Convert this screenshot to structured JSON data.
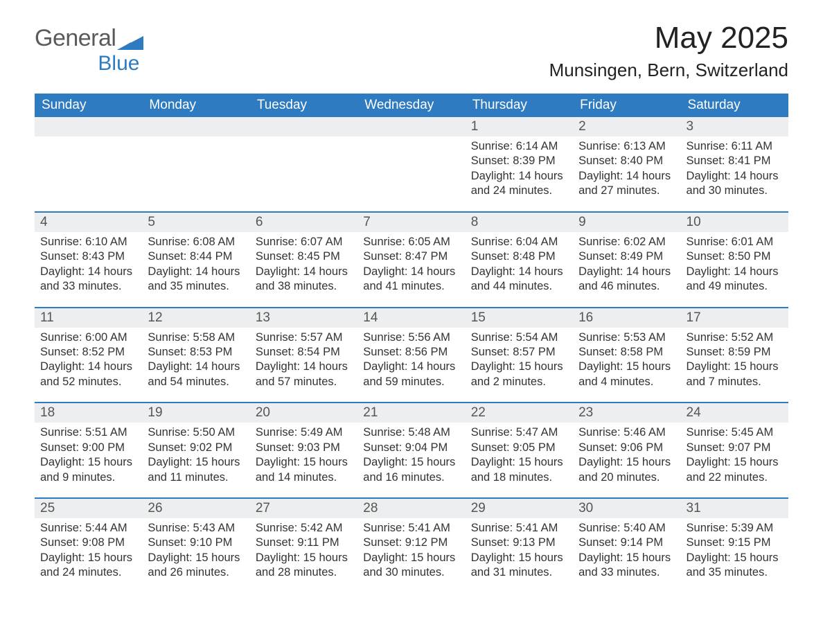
{
  "brand": {
    "name_part1": "General",
    "name_part2": "Blue",
    "color_primary": "#2f7bc2",
    "color_gray": "#5a5a5a"
  },
  "header": {
    "title": "May 2025",
    "subtitle": "Munsingen, Bern, Switzerland"
  },
  "styling": {
    "weekday_bg": "#2f7bc2",
    "weekday_fg": "#ffffff",
    "daynum_bg": "#eceeef",
    "daynum_fg": "#555555",
    "body_fg": "#333333",
    "week_divider": "#2f7bc2",
    "page_bg": "#ffffff",
    "title_fontsize": 44,
    "subtitle_fontsize": 26,
    "weekday_fontsize": 19,
    "daynum_fontsize": 19,
    "body_fontsize": 16.5
  },
  "weekdays": [
    "Sunday",
    "Monday",
    "Tuesday",
    "Wednesday",
    "Thursday",
    "Friday",
    "Saturday"
  ],
  "weeks": [
    [
      {
        "empty": true
      },
      {
        "empty": true
      },
      {
        "empty": true
      },
      {
        "empty": true
      },
      {
        "day": "1",
        "sunrise": "Sunrise: 6:14 AM",
        "sunset": "Sunset: 8:39 PM",
        "daylight1": "Daylight: 14 hours",
        "daylight2": "and 24 minutes."
      },
      {
        "day": "2",
        "sunrise": "Sunrise: 6:13 AM",
        "sunset": "Sunset: 8:40 PM",
        "daylight1": "Daylight: 14 hours",
        "daylight2": "and 27 minutes."
      },
      {
        "day": "3",
        "sunrise": "Sunrise: 6:11 AM",
        "sunset": "Sunset: 8:41 PM",
        "daylight1": "Daylight: 14 hours",
        "daylight2": "and 30 minutes."
      }
    ],
    [
      {
        "day": "4",
        "sunrise": "Sunrise: 6:10 AM",
        "sunset": "Sunset: 8:43 PM",
        "daylight1": "Daylight: 14 hours",
        "daylight2": "and 33 minutes."
      },
      {
        "day": "5",
        "sunrise": "Sunrise: 6:08 AM",
        "sunset": "Sunset: 8:44 PM",
        "daylight1": "Daylight: 14 hours",
        "daylight2": "and 35 minutes."
      },
      {
        "day": "6",
        "sunrise": "Sunrise: 6:07 AM",
        "sunset": "Sunset: 8:45 PM",
        "daylight1": "Daylight: 14 hours",
        "daylight2": "and 38 minutes."
      },
      {
        "day": "7",
        "sunrise": "Sunrise: 6:05 AM",
        "sunset": "Sunset: 8:47 PM",
        "daylight1": "Daylight: 14 hours",
        "daylight2": "and 41 minutes."
      },
      {
        "day": "8",
        "sunrise": "Sunrise: 6:04 AM",
        "sunset": "Sunset: 8:48 PM",
        "daylight1": "Daylight: 14 hours",
        "daylight2": "and 44 minutes."
      },
      {
        "day": "9",
        "sunrise": "Sunrise: 6:02 AM",
        "sunset": "Sunset: 8:49 PM",
        "daylight1": "Daylight: 14 hours",
        "daylight2": "and 46 minutes."
      },
      {
        "day": "10",
        "sunrise": "Sunrise: 6:01 AM",
        "sunset": "Sunset: 8:50 PM",
        "daylight1": "Daylight: 14 hours",
        "daylight2": "and 49 minutes."
      }
    ],
    [
      {
        "day": "11",
        "sunrise": "Sunrise: 6:00 AM",
        "sunset": "Sunset: 8:52 PM",
        "daylight1": "Daylight: 14 hours",
        "daylight2": "and 52 minutes."
      },
      {
        "day": "12",
        "sunrise": "Sunrise: 5:58 AM",
        "sunset": "Sunset: 8:53 PM",
        "daylight1": "Daylight: 14 hours",
        "daylight2": "and 54 minutes."
      },
      {
        "day": "13",
        "sunrise": "Sunrise: 5:57 AM",
        "sunset": "Sunset: 8:54 PM",
        "daylight1": "Daylight: 14 hours",
        "daylight2": "and 57 minutes."
      },
      {
        "day": "14",
        "sunrise": "Sunrise: 5:56 AM",
        "sunset": "Sunset: 8:56 PM",
        "daylight1": "Daylight: 14 hours",
        "daylight2": "and 59 minutes."
      },
      {
        "day": "15",
        "sunrise": "Sunrise: 5:54 AM",
        "sunset": "Sunset: 8:57 PM",
        "daylight1": "Daylight: 15 hours",
        "daylight2": "and 2 minutes."
      },
      {
        "day": "16",
        "sunrise": "Sunrise: 5:53 AM",
        "sunset": "Sunset: 8:58 PM",
        "daylight1": "Daylight: 15 hours",
        "daylight2": "and 4 minutes."
      },
      {
        "day": "17",
        "sunrise": "Sunrise: 5:52 AM",
        "sunset": "Sunset: 8:59 PM",
        "daylight1": "Daylight: 15 hours",
        "daylight2": "and 7 minutes."
      }
    ],
    [
      {
        "day": "18",
        "sunrise": "Sunrise: 5:51 AM",
        "sunset": "Sunset: 9:00 PM",
        "daylight1": "Daylight: 15 hours",
        "daylight2": "and 9 minutes."
      },
      {
        "day": "19",
        "sunrise": "Sunrise: 5:50 AM",
        "sunset": "Sunset: 9:02 PM",
        "daylight1": "Daylight: 15 hours",
        "daylight2": "and 11 minutes."
      },
      {
        "day": "20",
        "sunrise": "Sunrise: 5:49 AM",
        "sunset": "Sunset: 9:03 PM",
        "daylight1": "Daylight: 15 hours",
        "daylight2": "and 14 minutes."
      },
      {
        "day": "21",
        "sunrise": "Sunrise: 5:48 AM",
        "sunset": "Sunset: 9:04 PM",
        "daylight1": "Daylight: 15 hours",
        "daylight2": "and 16 minutes."
      },
      {
        "day": "22",
        "sunrise": "Sunrise: 5:47 AM",
        "sunset": "Sunset: 9:05 PM",
        "daylight1": "Daylight: 15 hours",
        "daylight2": "and 18 minutes."
      },
      {
        "day": "23",
        "sunrise": "Sunrise: 5:46 AM",
        "sunset": "Sunset: 9:06 PM",
        "daylight1": "Daylight: 15 hours",
        "daylight2": "and 20 minutes."
      },
      {
        "day": "24",
        "sunrise": "Sunrise: 5:45 AM",
        "sunset": "Sunset: 9:07 PM",
        "daylight1": "Daylight: 15 hours",
        "daylight2": "and 22 minutes."
      }
    ],
    [
      {
        "day": "25",
        "sunrise": "Sunrise: 5:44 AM",
        "sunset": "Sunset: 9:08 PM",
        "daylight1": "Daylight: 15 hours",
        "daylight2": "and 24 minutes."
      },
      {
        "day": "26",
        "sunrise": "Sunrise: 5:43 AM",
        "sunset": "Sunset: 9:10 PM",
        "daylight1": "Daylight: 15 hours",
        "daylight2": "and 26 minutes."
      },
      {
        "day": "27",
        "sunrise": "Sunrise: 5:42 AM",
        "sunset": "Sunset: 9:11 PM",
        "daylight1": "Daylight: 15 hours",
        "daylight2": "and 28 minutes."
      },
      {
        "day": "28",
        "sunrise": "Sunrise: 5:41 AM",
        "sunset": "Sunset: 9:12 PM",
        "daylight1": "Daylight: 15 hours",
        "daylight2": "and 30 minutes."
      },
      {
        "day": "29",
        "sunrise": "Sunrise: 5:41 AM",
        "sunset": "Sunset: 9:13 PM",
        "daylight1": "Daylight: 15 hours",
        "daylight2": "and 31 minutes."
      },
      {
        "day": "30",
        "sunrise": "Sunrise: 5:40 AM",
        "sunset": "Sunset: 9:14 PM",
        "daylight1": "Daylight: 15 hours",
        "daylight2": "and 33 minutes."
      },
      {
        "day": "31",
        "sunrise": "Sunrise: 5:39 AM",
        "sunset": "Sunset: 9:15 PM",
        "daylight1": "Daylight: 15 hours",
        "daylight2": "and 35 minutes."
      }
    ]
  ]
}
